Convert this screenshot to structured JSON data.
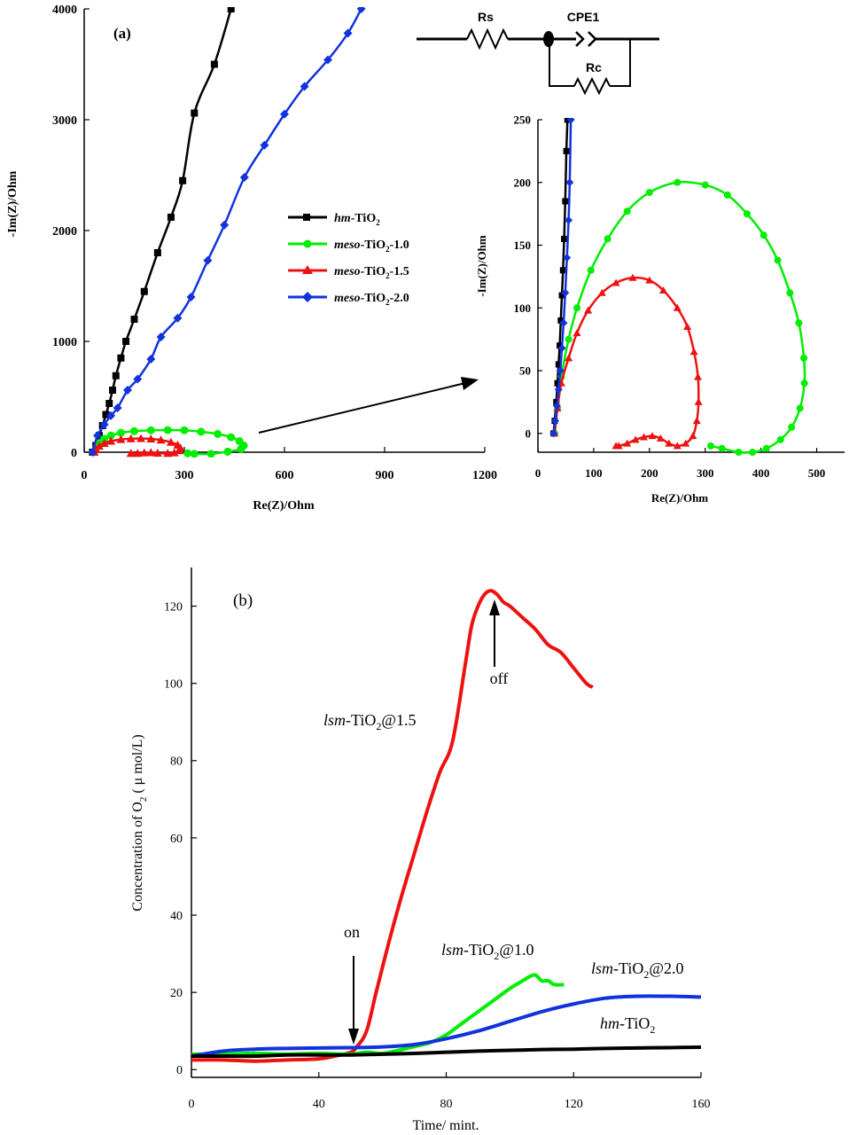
{
  "colors": {
    "hm": "#000000",
    "meso10": "#00ee00",
    "meso15": "#ee1111",
    "meso20": "#1133dd"
  },
  "panel_a": {
    "label": "(a)",
    "circuit": {
      "rs": "Rs",
      "cpe": "CPE1",
      "rc": "Rc"
    },
    "legend": [
      {
        "key": "hm",
        "prefix": "hm",
        "base": "-TiO",
        "sub": "2",
        "suffix": ""
      },
      {
        "key": "meso10",
        "prefix": "meso",
        "base": "-TiO",
        "sub": "2",
        "suffix": "-1.0"
      },
      {
        "key": "meso15",
        "prefix": "meso",
        "base": "-TiO",
        "sub": "2",
        "suffix": "-1.5"
      },
      {
        "key": "meso20",
        "prefix": "meso",
        "base": "-TiO",
        "sub": "2",
        "suffix": "-2.0"
      }
    ]
  },
  "panel_b": {
    "label": "(b)",
    "annotations": {
      "on": "on",
      "off": "off",
      "lsm15": {
        "prefix": "lsm",
        "base": "-TiO",
        "sub": "2",
        "suffix": "@1.5"
      },
      "lsm10": {
        "prefix": "lsm",
        "base": "-TiO",
        "sub": "2",
        "suffix": "@1.0"
      },
      "lsm20": {
        "prefix": "lsm",
        "base": "-TiO",
        "sub": "2",
        "suffix": "@2.0"
      },
      "hm": {
        "prefix": "hm",
        "base": "-TiO",
        "sub": "2",
        "suffix": ""
      }
    }
  },
  "chart_data": [
    {
      "id": "a_main",
      "type": "scatter",
      "title": "(a)",
      "xlabel": "Re(Z)/Ohm",
      "ylabel": "-Im(Z)/Ohm",
      "xlim": [
        0,
        1200
      ],
      "ylim": [
        0,
        4000
      ],
      "xticks": [
        0,
        300,
        600,
        900,
        1200
      ],
      "yticks": [
        0,
        1000,
        2000,
        3000,
        4000
      ],
      "legend_position": "center",
      "series": [
        {
          "name": "hm-TiO2",
          "key": "hm",
          "marker": "square",
          "x": [
            25,
            35,
            45,
            55,
            65,
            75,
            85,
            95,
            110,
            125,
            150,
            180,
            220,
            260,
            295,
            330,
            390,
            440
          ],
          "y": [
            0,
            60,
            150,
            240,
            340,
            440,
            560,
            690,
            850,
            1000,
            1200,
            1450,
            1800,
            2120,
            2450,
            3060,
            3500,
            4000
          ]
        },
        {
          "name": "meso-TiO2-1.0",
          "key": "meso10",
          "marker": "circle",
          "x": [
            30,
            35,
            45,
            60,
            80,
            110,
            150,
            200,
            250,
            300,
            350,
            400,
            440,
            465,
            478,
            470,
            430,
            380,
            330,
            310
          ],
          "y": [
            0,
            30,
            80,
            120,
            150,
            175,
            190,
            198,
            200,
            198,
            185,
            165,
            135,
            100,
            60,
            30,
            5,
            -15,
            -15,
            -10
          ]
        },
        {
          "name": "meso-TiO2-1.5",
          "key": "meso15",
          "marker": "triangle",
          "x": [
            30,
            35,
            45,
            60,
            80,
            110,
            140,
            170,
            200,
            230,
            260,
            280,
            288,
            285,
            270,
            250,
            220,
            200,
            180,
            160,
            140
          ],
          "y": [
            0,
            25,
            55,
            80,
            100,
            115,
            122,
            124,
            120,
            110,
            90,
            65,
            40,
            15,
            -5,
            -10,
            -8,
            -3,
            -5,
            -10,
            -10
          ]
        },
        {
          "name": "meso-TiO2-2.0",
          "key": "meso20",
          "marker": "diamond",
          "x": [
            25,
            40,
            60,
            80,
            100,
            130,
            160,
            200,
            230,
            280,
            320,
            370,
            420,
            480,
            540,
            600,
            660,
            730,
            790,
            830
          ],
          "y": [
            0,
            150,
            250,
            330,
            400,
            560,
            660,
            840,
            1040,
            1210,
            1400,
            1730,
            2050,
            2480,
            2770,
            3050,
            3300,
            3540,
            3780,
            4000
          ]
        }
      ]
    },
    {
      "id": "a_inset",
      "type": "scatter",
      "xlabel": "Re(Z)/Ohm",
      "ylabel": "-Im(Z)/Ohm",
      "xlim": [
        0,
        550
      ],
      "ylim": [
        -15,
        250
      ],
      "xticks": [
        0,
        100,
        200,
        300,
        400,
        500
      ],
      "yticks": [
        0,
        50,
        100,
        150,
        200,
        250
      ],
      "series": [
        {
          "name": "hm-TiO2",
          "key": "hm",
          "marker": "square",
          "x": [
            28,
            30,
            33,
            35,
            37,
            39,
            41,
            43,
            45,
            47,
            49,
            51,
            53
          ],
          "y": [
            0,
            10,
            25,
            40,
            55,
            70,
            90,
            110,
            130,
            155,
            185,
            225,
            250
          ]
        },
        {
          "name": "meso-TiO2-1.0",
          "key": "meso10",
          "marker": "circle",
          "x": [
            30,
            35,
            42,
            55,
            70,
            95,
            125,
            160,
            200,
            250,
            300,
            340,
            375,
            405,
            430,
            452,
            468,
            477,
            478,
            470,
            455,
            435,
            410,
            385,
            360,
            330,
            310
          ],
          "y": [
            0,
            20,
            45,
            75,
            100,
            130,
            155,
            177,
            192,
            200,
            198,
            190,
            175,
            158,
            138,
            112,
            88,
            60,
            40,
            20,
            5,
            -5,
            -12,
            -15,
            -15,
            -12,
            -10
          ]
        },
        {
          "name": "meso-TiO2-1.5",
          "key": "meso15",
          "marker": "triangle",
          "x": [
            30,
            35,
            42,
            55,
            70,
            90,
            115,
            140,
            170,
            200,
            225,
            250,
            268,
            280,
            287,
            288,
            285,
            278,
            265,
            250,
            235,
            220,
            205,
            190,
            175,
            160,
            145,
            140
          ],
          "y": [
            0,
            20,
            40,
            60,
            80,
            98,
            112,
            120,
            124,
            122,
            114,
            100,
            85,
            65,
            45,
            25,
            10,
            -2,
            -8,
            -10,
            -8,
            -4,
            -2,
            -3,
            -5,
            -8,
            -10,
            -10
          ]
        },
        {
          "name": "meso-TiO2-2.0",
          "key": "meso20",
          "marker": "diamond",
          "x": [
            28,
            31,
            34,
            37,
            40,
            43,
            46,
            49,
            52,
            55,
            57,
            59
          ],
          "y": [
            0,
            10,
            22,
            35,
            50,
            68,
            88,
            112,
            140,
            170,
            200,
            250
          ]
        }
      ]
    },
    {
      "id": "b",
      "type": "line",
      "title": "(b)",
      "xlabel": "Time/ mint.",
      "ylabel_prefix": "Concentration of O",
      "ylabel_sub": "2",
      "ylabel_suffix": " ( μ mol/L)",
      "xlim": [
        0,
        160
      ],
      "ylim": [
        -2,
        130
      ],
      "xticks": [
        0,
        40,
        80,
        120,
        160
      ],
      "yticks": [
        0,
        20,
        40,
        60,
        80,
        100,
        120
      ],
      "series": [
        {
          "name": "lsm-TiO2@1.5",
          "key": "meso15",
          "x": [
            0,
            10,
            20,
            30,
            40,
            45,
            50,
            52,
            55,
            58,
            62,
            66,
            70,
            74,
            78,
            82,
            86,
            88,
            90,
            92,
            94,
            96,
            98,
            100,
            104,
            108,
            112,
            116,
            120,
            124,
            126
          ],
          "y": [
            2.5,
            2.5,
            2.2,
            2.5,
            2.8,
            3.5,
            4.5,
            6,
            10,
            20,
            33,
            45,
            56,
            67,
            77,
            85,
            105,
            115,
            120,
            123,
            124,
            123,
            121,
            120,
            117,
            114,
            110,
            108,
            104,
            100,
            99
          ]
        },
        {
          "name": "lsm-TiO2@1.0",
          "key": "meso10",
          "x": [
            0,
            10,
            20,
            30,
            40,
            50,
            55,
            60,
            65,
            70,
            75,
            80,
            85,
            90,
            95,
            100,
            104,
            106,
            108,
            110,
            112,
            114,
            117
          ],
          "y": [
            4,
            4,
            4.2,
            4,
            4.2,
            4,
            4.5,
            4.2,
            5,
            6,
            7,
            9,
            12,
            15,
            18,
            21,
            23,
            24,
            24.5,
            23,
            23,
            22,
            22
          ]
        },
        {
          "name": "lsm-TiO2@2.0",
          "key": "meso20",
          "x": [
            0,
            10,
            20,
            30,
            40,
            50,
            60,
            70,
            80,
            90,
            100,
            110,
            120,
            130,
            140,
            150,
            160
          ],
          "y": [
            3.5,
            4.8,
            5.3,
            5.5,
            5.6,
            5.7,
            5.9,
            6.5,
            8,
            10,
            12.5,
            15,
            17,
            18.5,
            19,
            19,
            18.8
          ]
        },
        {
          "name": "hm-TiO2",
          "key": "hm",
          "x": [
            0,
            10,
            20,
            30,
            40,
            50,
            60,
            70,
            80,
            90,
            100,
            110,
            120,
            130,
            140,
            150,
            160
          ],
          "y": [
            3.5,
            3.5,
            3.5,
            3.8,
            3.8,
            3.8,
            4,
            4.2,
            4.5,
            4.8,
            5,
            5.2,
            5.3,
            5.5,
            5.6,
            5.7,
            5.8
          ]
        }
      ]
    }
  ]
}
